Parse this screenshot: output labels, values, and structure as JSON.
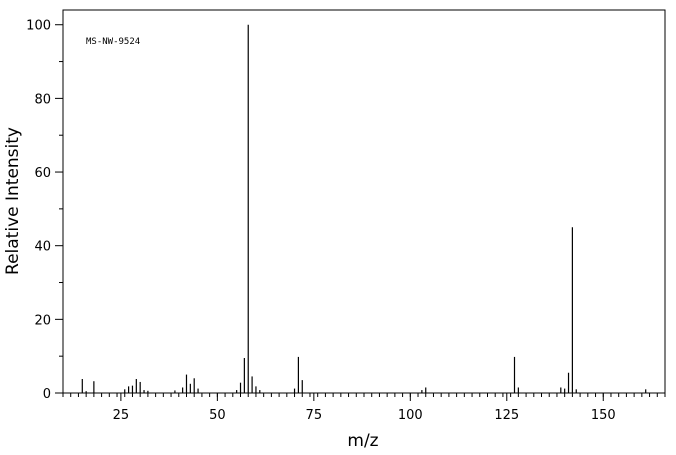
{
  "chart_data": {
    "type": "bar",
    "code_label": "MS-NW-9524",
    "xlabel": "m/z",
    "ylabel": "Relative Intensity",
    "xlim": [
      10,
      166
    ],
    "ylim": [
      0,
      104
    ],
    "x_ticks": [
      25,
      50,
      75,
      100,
      125,
      150
    ],
    "y_ticks": [
      0,
      20,
      40,
      60,
      80,
      100
    ],
    "grid": false,
    "peaks": [
      {
        "mz": 15,
        "intensity": 3.8
      },
      {
        "mz": 16,
        "intensity": 0.5
      },
      {
        "mz": 18,
        "intensity": 3.2
      },
      {
        "mz": 26,
        "intensity": 1.0
      },
      {
        "mz": 27,
        "intensity": 1.8
      },
      {
        "mz": 28,
        "intensity": 2.0
      },
      {
        "mz": 29,
        "intensity": 3.8
      },
      {
        "mz": 30,
        "intensity": 3.0
      },
      {
        "mz": 31,
        "intensity": 0.8
      },
      {
        "mz": 32,
        "intensity": 0.6
      },
      {
        "mz": 39,
        "intensity": 0.7
      },
      {
        "mz": 41,
        "intensity": 1.5
      },
      {
        "mz": 42,
        "intensity": 5.0
      },
      {
        "mz": 43,
        "intensity": 2.5
      },
      {
        "mz": 44,
        "intensity": 4.0
      },
      {
        "mz": 45,
        "intensity": 1.2
      },
      {
        "mz": 55,
        "intensity": 0.8
      },
      {
        "mz": 56,
        "intensity": 2.8
      },
      {
        "mz": 57,
        "intensity": 9.5
      },
      {
        "mz": 58,
        "intensity": 100
      },
      {
        "mz": 59,
        "intensity": 4.5
      },
      {
        "mz": 60,
        "intensity": 1.8
      },
      {
        "mz": 61,
        "intensity": 0.8
      },
      {
        "mz": 70,
        "intensity": 1.2
      },
      {
        "mz": 71,
        "intensity": 9.8
      },
      {
        "mz": 72,
        "intensity": 3.5
      },
      {
        "mz": 103,
        "intensity": 0.8
      },
      {
        "mz": 104,
        "intensity": 1.5
      },
      {
        "mz": 127,
        "intensity": 9.8
      },
      {
        "mz": 128,
        "intensity": 1.5
      },
      {
        "mz": 139,
        "intensity": 1.5
      },
      {
        "mz": 140,
        "intensity": 1.2
      },
      {
        "mz": 141,
        "intensity": 5.5
      },
      {
        "mz": 142,
        "intensity": 45
      },
      {
        "mz": 143,
        "intensity": 1.0
      },
      {
        "mz": 161,
        "intensity": 1.0
      }
    ]
  }
}
